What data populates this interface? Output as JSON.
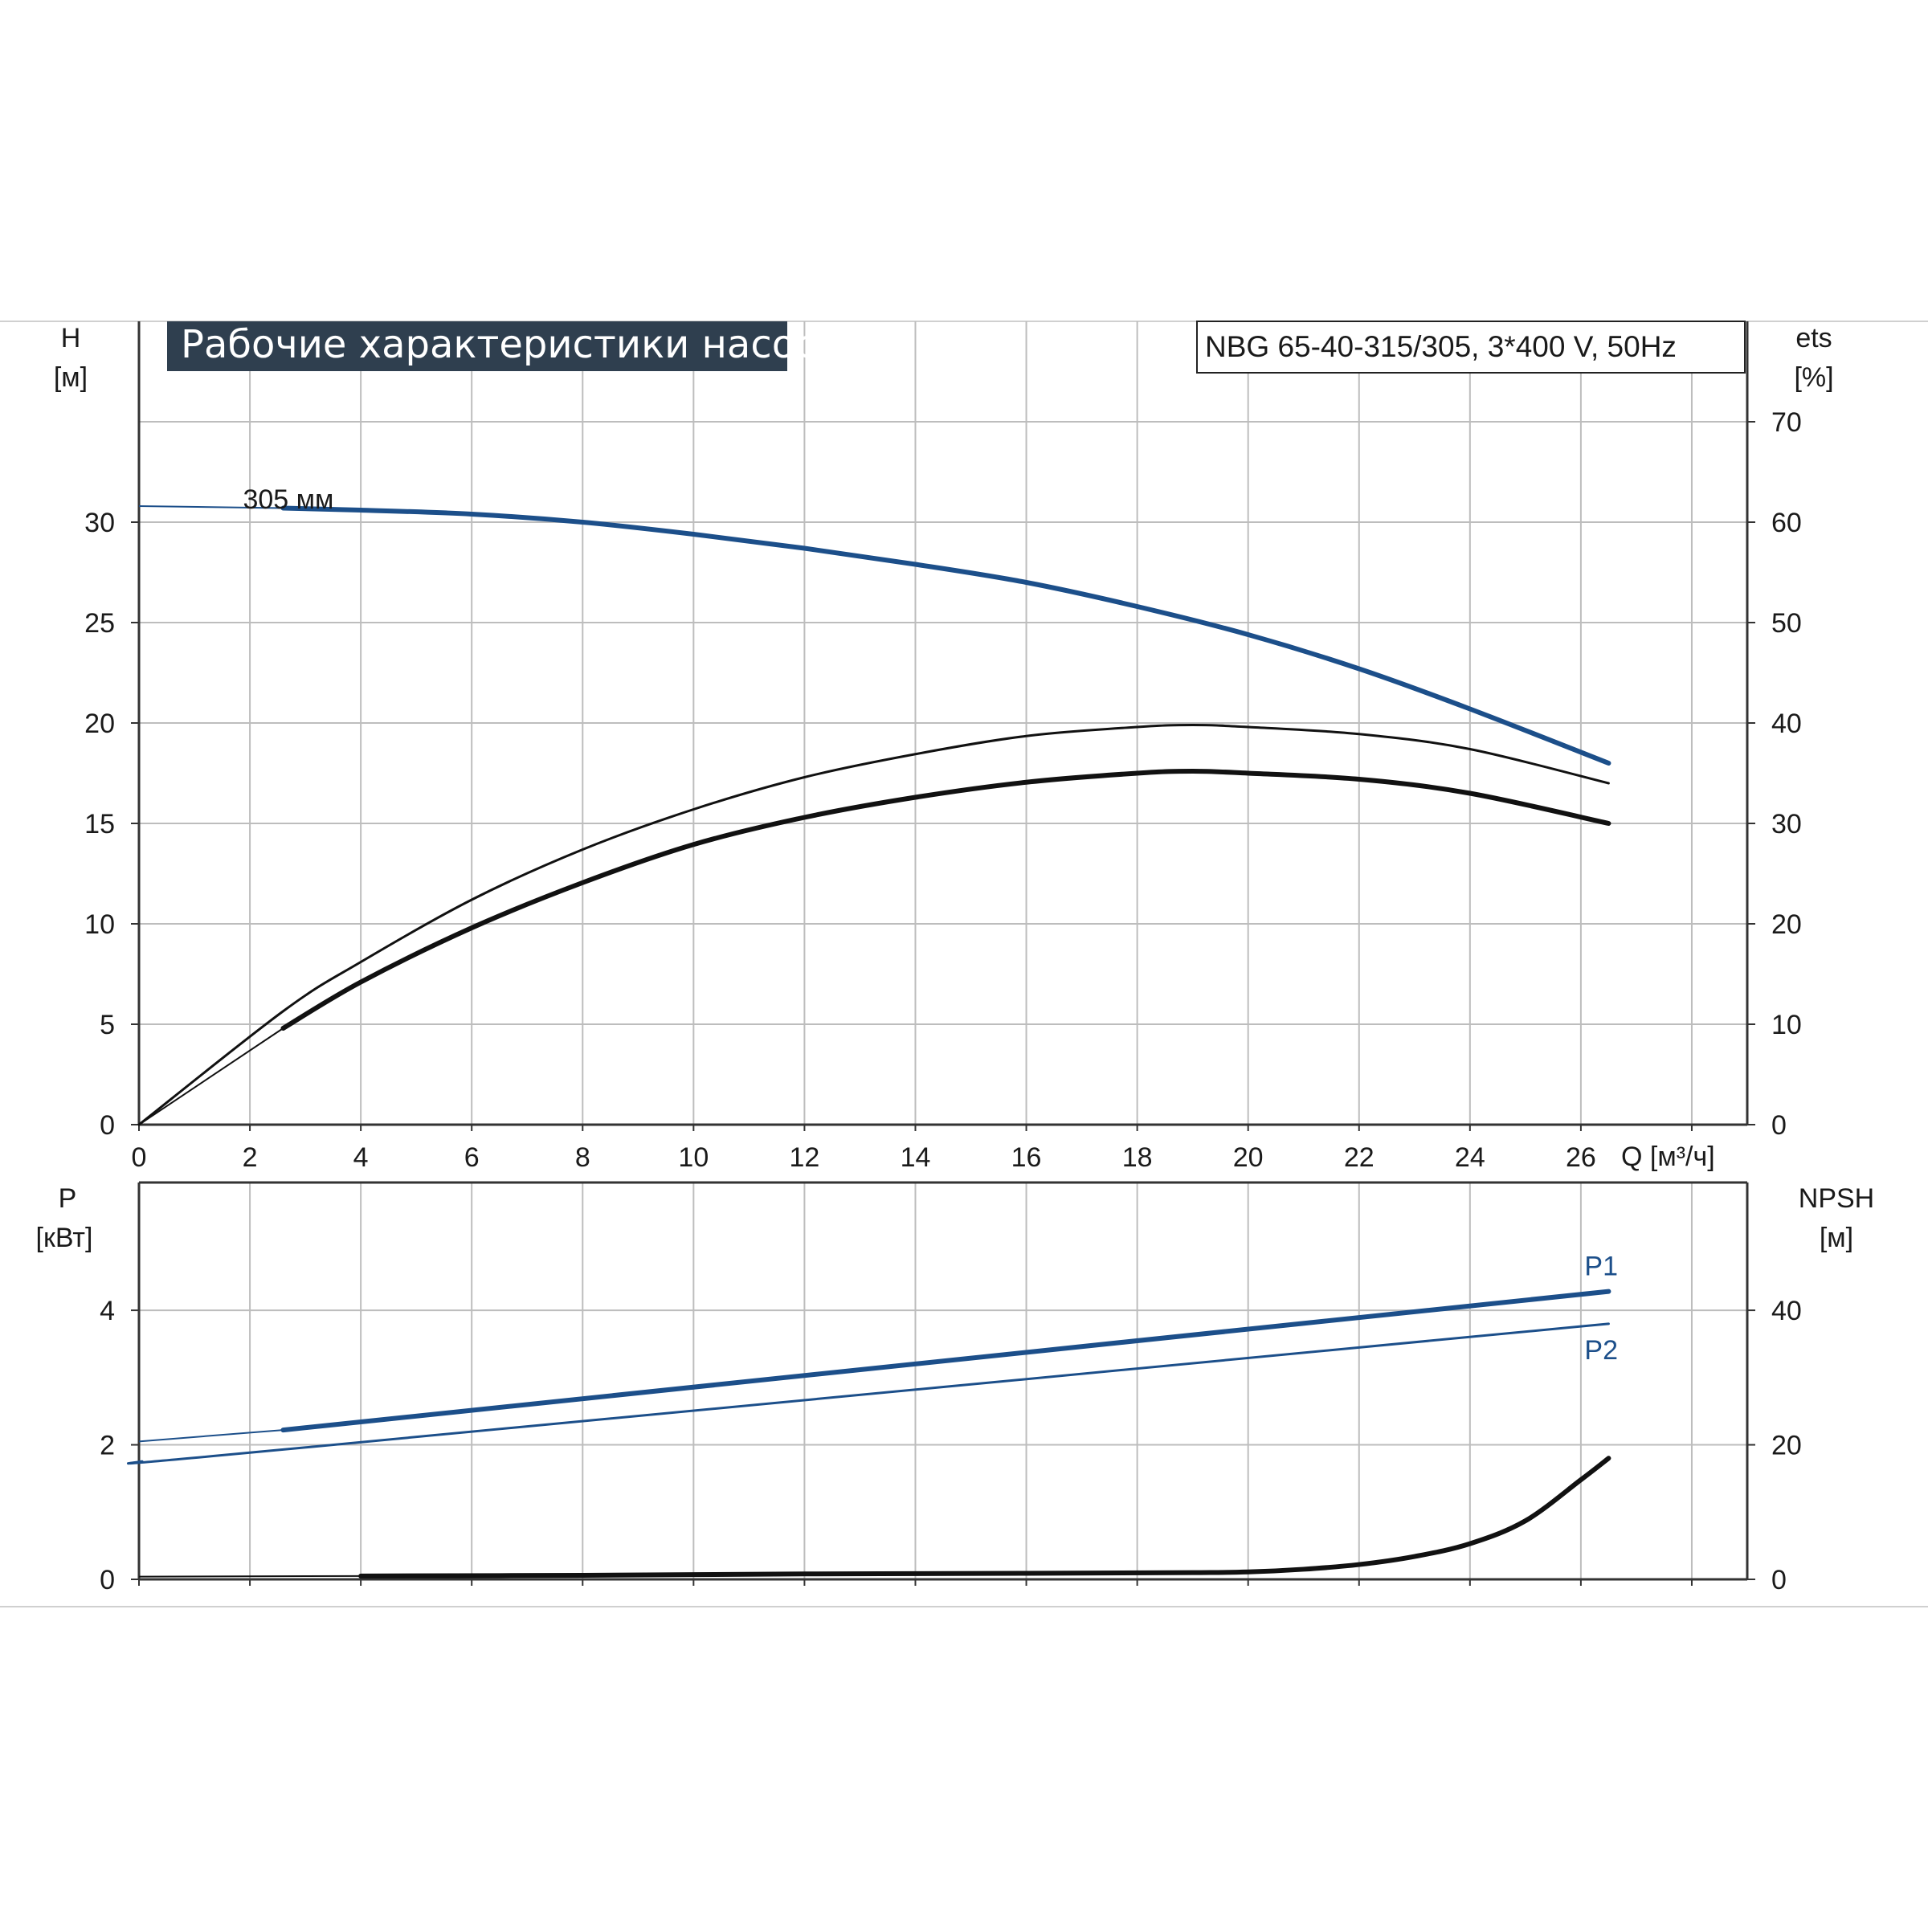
{
  "header": {
    "title": "Рабочие характеристики насоса",
    "model": "NBG 65-40-315/305, 3*400 V, 50Hz"
  },
  "colors": {
    "title_bg": "#2f3f4f",
    "curve_blue": "#1c4f8a",
    "curve_black": "#111111",
    "grid": "#bdbdbd"
  },
  "chart_data": [
    {
      "type": "line",
      "name": "head-efficiency",
      "x_label": "Q [м³/ч]",
      "x_ticks": [
        "0",
        "2",
        "4",
        "6",
        "8",
        "10",
        "12",
        "14",
        "16",
        "18",
        "20",
        "22",
        "24",
        "26"
      ],
      "xlim": [
        0,
        29
      ],
      "y_left": {
        "label_top": "H",
        "label_unit": "[м]",
        "ticks": [
          "0",
          "5",
          "10",
          "15",
          "20",
          "25",
          "30"
        ],
        "lim": [
          0,
          40
        ]
      },
      "y_right": {
        "label_top": "ets",
        "label_unit": "[%]",
        "ticks": [
          "0",
          "10",
          "20",
          "30",
          "40",
          "50",
          "60",
          "70"
        ],
        "lim": [
          0,
          80
        ]
      },
      "annotations": [
        {
          "text": "305 мм",
          "x": 2.6,
          "y": 31
        }
      ],
      "grid": true,
      "series": [
        {
          "axis": "left",
          "color_key": "curve_blue",
          "style": "thick",
          "x": [
            0,
            2.6,
            4,
            6,
            8,
            10,
            12,
            14,
            16,
            18,
            20,
            22,
            24,
            26.5
          ],
          "y": [
            30.8,
            30.7,
            30.6,
            30.4,
            30.0,
            29.4,
            28.7,
            27.9,
            27.0,
            25.8,
            24.4,
            22.7,
            20.7,
            18.0
          ]
        },
        {
          "axis": "right",
          "color_key": "curve_black",
          "style": "thin",
          "x": [
            0,
            2.6,
            4,
            6,
            8,
            10,
            12,
            14,
            16,
            18,
            19,
            20,
            22,
            24,
            26.5
          ],
          "y": [
            0,
            11.3,
            16.2,
            22.4,
            27.4,
            31.4,
            34.6,
            36.9,
            38.7,
            39.6,
            39.8,
            39.6,
            38.9,
            37.4,
            34.0
          ]
        },
        {
          "axis": "right",
          "color_key": "curve_black",
          "style": "thick",
          "x": [
            0,
            2.6,
            4,
            6,
            8,
            10,
            12,
            14,
            16,
            18,
            19,
            20,
            22,
            24,
            26.5
          ],
          "y": [
            0,
            9.6,
            14.2,
            19.6,
            24.1,
            27.9,
            30.6,
            32.6,
            34.1,
            35.0,
            35.2,
            35.0,
            34.4,
            33.0,
            30.0
          ]
        }
      ]
    },
    {
      "type": "line",
      "name": "power-npsh",
      "xlim": [
        0,
        29
      ],
      "y_left": {
        "label_top": "P",
        "label_unit": "[кВт]",
        "ticks": [
          "0",
          "2",
          "4"
        ],
        "lim": [
          0,
          5.9
        ]
      },
      "y_right": {
        "label_top": "NPSH",
        "label_unit": "[м]",
        "ticks": [
          "0",
          "20",
          "40"
        ],
        "lim": [
          0,
          59
        ]
      },
      "grid": true,
      "series": [
        {
          "name": "P1",
          "axis": "left",
          "color_key": "curve_blue",
          "style": "thick",
          "x": [
            0,
            2.6,
            26.5
          ],
          "y": [
            2.05,
            2.22,
            4.28
          ]
        },
        {
          "name": "P2",
          "axis": "left",
          "color_key": "curve_blue",
          "style": "thin",
          "x": [
            0,
            2.6,
            26.5
          ],
          "y": [
            1.75,
            1.93,
            3.8
          ]
        },
        {
          "axis": "right",
          "color_key": "curve_black",
          "style": "thick",
          "x": [
            0,
            4,
            8,
            12,
            16,
            19,
            20,
            21,
            22,
            23,
            24,
            25,
            26,
            26.5
          ],
          "y": [
            0.4,
            0.5,
            0.6,
            0.8,
            0.9,
            1.0,
            1.1,
            1.5,
            2.2,
            3.4,
            5.3,
            8.7,
            14.8,
            18.0
          ]
        }
      ]
    }
  ]
}
